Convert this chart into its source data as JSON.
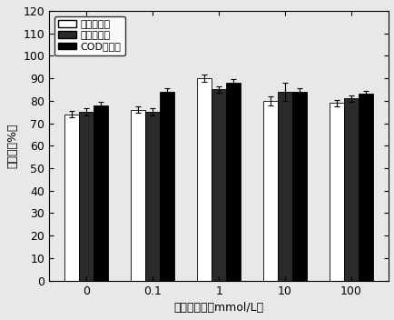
{
  "categories": [
    "0",
    "0.1",
    "1",
    "10",
    "100"
  ],
  "series": {
    "总氮吸收率": {
      "values": [
        74,
        76,
        90,
        80,
        79
      ],
      "errors": [
        1.5,
        1.5,
        1.5,
        2.0,
        1.5
      ],
      "color": "white",
      "edgecolor": "black",
      "hatch": ""
    },
    "总磷吸收率": {
      "values": [
        75,
        75,
        85,
        84,
        81
      ],
      "errors": [
        1.5,
        1.5,
        1.5,
        4.0,
        1.5
      ],
      "color": "#2a2a2a",
      "edgecolor": "black",
      "hatch": ""
    },
    "COD吸收率": {
      "values": [
        78,
        84,
        88,
        84,
        83
      ],
      "errors": [
        1.5,
        1.5,
        1.5,
        1.5,
        1.5
      ],
      "color": "black",
      "edgecolor": "black",
      "hatch": ""
    }
  },
  "ylabel": "吸收率（%）",
  "xlabel": "腐黑素浓度（mmol/L）",
  "ylim": [
    0,
    120
  ],
  "yticks": [
    0,
    10,
    20,
    30,
    40,
    50,
    60,
    70,
    80,
    90,
    100,
    110,
    120
  ],
  "bar_width": 0.22,
  "legend_labels": [
    "总氮吸收率",
    "总磷吸收率",
    "COD吸收率"
  ],
  "font_size": 9,
  "label_font_size": 9,
  "fig_facecolor": "#e8e8e8",
  "axes_facecolor": "#e8e8e8"
}
